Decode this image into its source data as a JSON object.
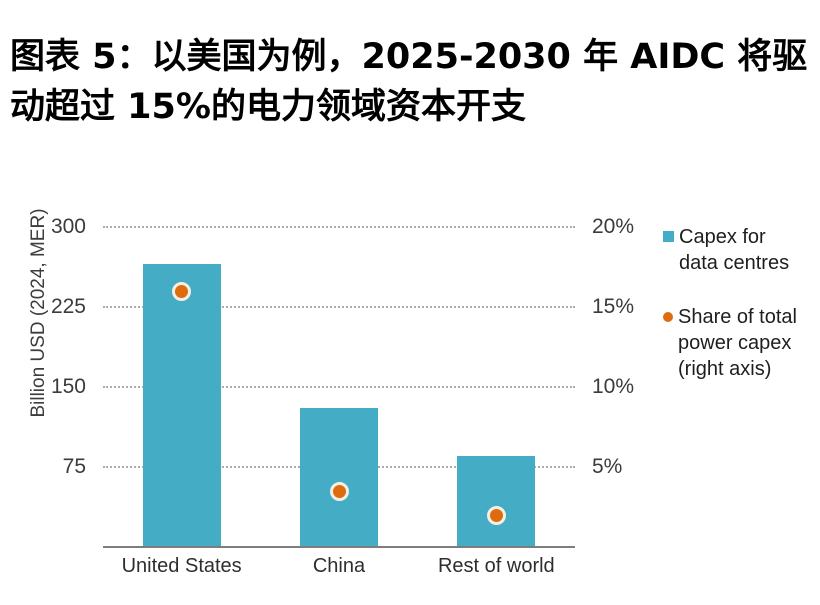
{
  "title": {
    "lines": [
      "图表 5：以美国为例，2025-2030 年 AIDC 将驱",
      "动超过 15%的电力领域资本开支"
    ]
  },
  "chart_data": {
    "type": "bar",
    "title": "图表 5：以美国为例，2025-2030 年 AIDC 将驱动超过 15%的电力领域资本开支",
    "categories": [
      "United States",
      "China",
      "Rest of world"
    ],
    "series": [
      {
        "name": "Capex for data centres",
        "type": "bar",
        "axis": "left",
        "values": [
          265,
          130,
          85
        ],
        "color": "#45acc6"
      },
      {
        "name": "Share of total power capex (right axis)",
        "type": "scatter",
        "axis": "right",
        "values": [
          16,
          3.5,
          2
        ],
        "color": "#de6c0e"
      }
    ],
    "left_axis": {
      "label": "Billion USD (2024, MER)",
      "ticks": [
        75,
        150,
        225,
        300
      ],
      "range": [
        0,
        316
      ]
    },
    "right_axis": {
      "label": "",
      "ticks": [
        "5%",
        "10%",
        "15%",
        "20%"
      ],
      "tick_values": [
        5,
        10,
        15,
        20
      ],
      "range": [
        0,
        21
      ]
    },
    "grid": "horizontal dotted",
    "legend_position": "right"
  },
  "legend": {
    "items": [
      {
        "marker": "square",
        "color": "#45acc6",
        "label_lines": [
          "Capex for",
          "data centres"
        ]
      },
      {
        "marker": "circle",
        "color": "#de6c0e",
        "label_lines": [
          "Share of total",
          "power capex",
          "(right axis)"
        ]
      }
    ]
  },
  "colors": {
    "bar_teal": "#45acc6",
    "dot_orange": "#de6c0e",
    "dot_ring": "#f3efe2",
    "gridline": "#ababab",
    "axis_line": "#7d7d7d",
    "text": "#3b3b3b",
    "title": "#000000",
    "background": "#ffffff"
  }
}
